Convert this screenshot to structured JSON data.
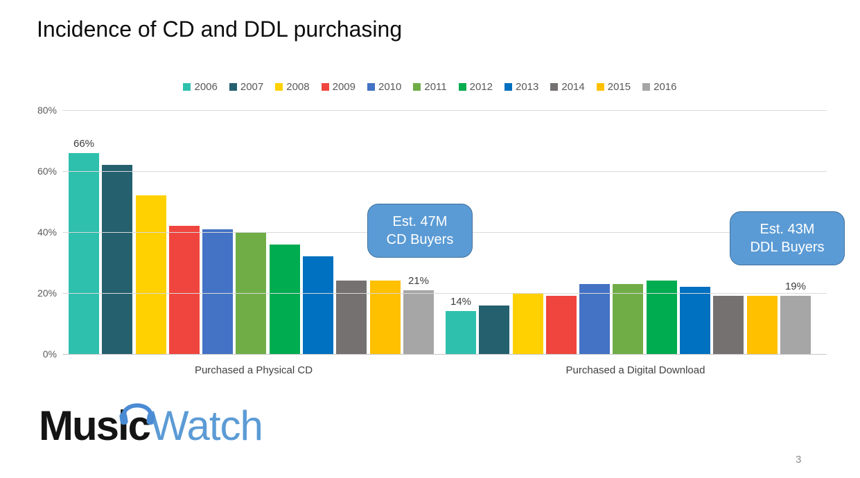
{
  "slide": {
    "title": "Incidence of CD and DDL purchasing",
    "page_number": "3"
  },
  "logo": {
    "text_black": "Music",
    "text_blue": "Watch",
    "headphones_icon_color": "#4a8bd4",
    "blue_text_color": "#5b9bd5"
  },
  "callouts": [
    {
      "line1": "Est. 47M",
      "line2": "CD Buyers"
    },
    {
      "line1": "Est. 43M",
      "line2": "DDL Buyers"
    }
  ],
  "colors": {
    "callout_fill": "#5b9bd5",
    "callout_border": "#41719c",
    "gridline": "#d9d9d9",
    "axis_line": "#c6c6c6",
    "tick_text": "#595959"
  },
  "chart_data": {
    "type": "bar",
    "title": "",
    "xlabel": "",
    "ylabel": "",
    "categories": [
      "Purchased a Physical CD",
      "Purchased a Digital Download"
    ],
    "series": [
      {
        "name": "2006",
        "color": "#2ec0ad",
        "values": [
          66,
          14
        ]
      },
      {
        "name": "2007",
        "color": "#25606f",
        "values": [
          62,
          16
        ]
      },
      {
        "name": "2008",
        "color": "#ffd100",
        "values": [
          52,
          20
        ]
      },
      {
        "name": "2009",
        "color": "#f0453e",
        "values": [
          42,
          19
        ]
      },
      {
        "name": "2010",
        "color": "#4472c4",
        "values": [
          41,
          23
        ]
      },
      {
        "name": "2011",
        "color": "#70ad47",
        "values": [
          40,
          23
        ]
      },
      {
        "name": "2012",
        "color": "#00ac50",
        "values": [
          36,
          24
        ]
      },
      {
        "name": "2013",
        "color": "#0070c0",
        "values": [
          32,
          22
        ]
      },
      {
        "name": "2014",
        "color": "#767171",
        "values": [
          24,
          19
        ]
      },
      {
        "name": "2015",
        "color": "#ffc000",
        "values": [
          24,
          19
        ]
      },
      {
        "name": "2016",
        "color": "#a6a6a6",
        "values": [
          21,
          19
        ]
      }
    ],
    "point_labels": [
      {
        "series_index": 0,
        "category_index": 0,
        "text": "66%"
      },
      {
        "series_index": 10,
        "category_index": 0,
        "text": "21%"
      },
      {
        "series_index": 0,
        "category_index": 1,
        "text": "14%"
      },
      {
        "series_index": 10,
        "category_index": 1,
        "text": "19%"
      }
    ],
    "y_axis": {
      "min": 0,
      "max": 80,
      "tick_labels": [
        "80%",
        "60%",
        "40%",
        "20%",
        "0%"
      ],
      "tick_values": [
        80,
        60,
        40,
        20,
        0
      ]
    },
    "grid": true,
    "legend_position": "top"
  }
}
